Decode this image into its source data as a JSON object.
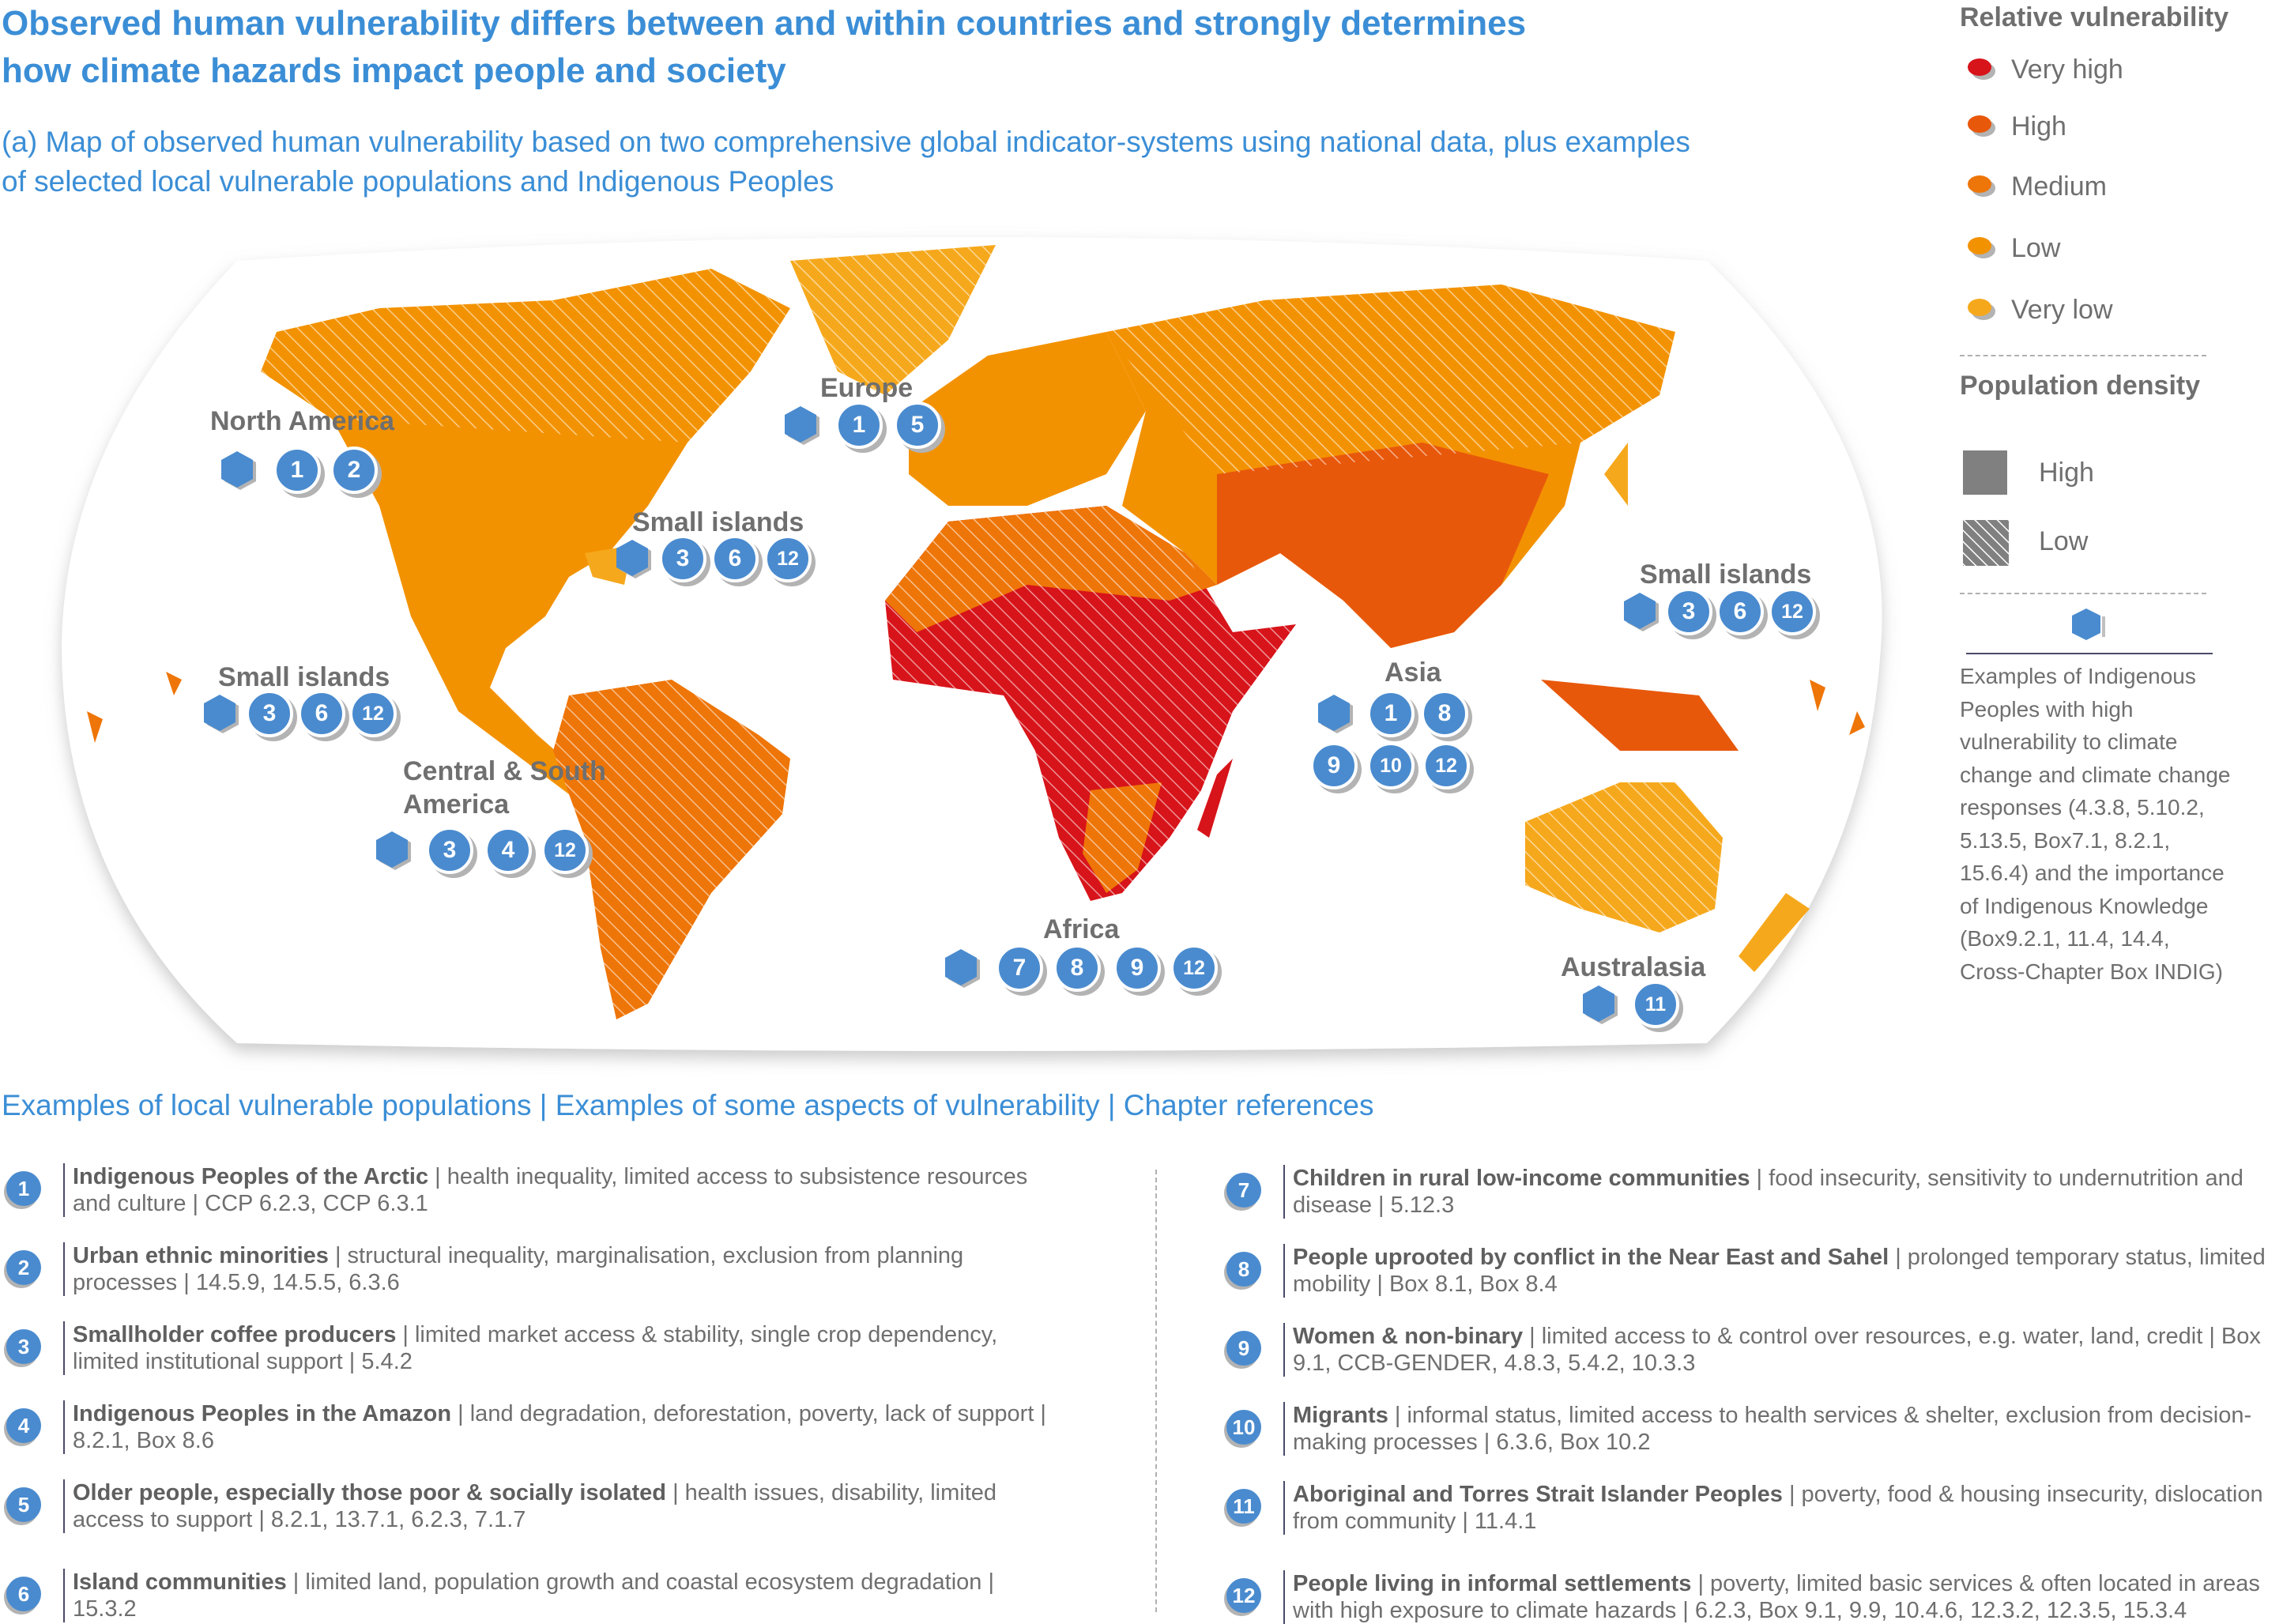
{
  "title": "Observed human vulnerability differs between and within countries and strongly determines how climate hazards impact people and society",
  "subtitle": "(a) Map of observed human vulnerability based on two comprehensive global indicator-systems using national data, plus examples of selected local vulnerable populations and Indigenous Peoples",
  "colors": {
    "very_high": "#d7141a",
    "high": "#e8580b",
    "medium": "#ee7507",
    "low": "#f39200",
    "very_low": "#f6a81c",
    "accent_blue": "#3b8ed6",
    "marker_blue": "#4a8bcf"
  },
  "legend": {
    "vulnerability_title": "Relative vulnerability",
    "vulnerability_levels": [
      "Very high",
      "High",
      "Medium",
      "Low",
      "Very low"
    ],
    "density_title": "Population density",
    "density_high": "High",
    "density_low": "Low",
    "indigenous_icon": "hexagon-icon",
    "indigenous_desc": "Examples of Indigenous Peoples with high vulnerability to climate change and climate change responses (4.3.8, 5.10.2, 5.13.5, Box7.1, 8.2.1, 15.6.4) and the importance of Indigenous Knowledge (Box9.2.1, 11.4, 14.4, Cross-Chapter Box INDIG)"
  },
  "map_regions": [
    {
      "label": "North America",
      "indigenous": true,
      "numbers": [
        "1",
        "2"
      ]
    },
    {
      "label": "Europe",
      "indigenous": true,
      "numbers": [
        "1",
        "5"
      ]
    },
    {
      "label": "Small islands",
      "indigenous": true,
      "numbers": [
        "3",
        "6",
        "12"
      ]
    },
    {
      "label": "Small islands",
      "indigenous": true,
      "numbers": [
        "3",
        "6",
        "12"
      ]
    },
    {
      "label": "Central & South America",
      "indigenous": true,
      "numbers": [
        "3",
        "4",
        "12"
      ]
    },
    {
      "label": "Africa",
      "indigenous": true,
      "numbers": [
        "7",
        "8",
        "9",
        "12"
      ]
    },
    {
      "label": "Asia",
      "indigenous": true,
      "numbers": [
        "1",
        "8",
        "9",
        "10",
        "12"
      ]
    },
    {
      "label": "Small islands",
      "indigenous": true,
      "numbers": [
        "3",
        "6",
        "12"
      ]
    },
    {
      "label": "Australasia",
      "indigenous": true,
      "numbers": [
        "11"
      ]
    }
  ],
  "section_heading": "Examples of local vulnerable populations | Examples of some aspects of vulnerability | Chapter references",
  "items": [
    {
      "num": "1",
      "name": "Indigenous Peoples of the Arctic",
      "detail": " | health inequality, limited access to subsistence resources and culture | CCP 6.2.3, CCP 6.3.1"
    },
    {
      "num": "2",
      "name": "Urban ethnic minorities",
      "detail": " | structural inequality, marginalisation, exclusion from planning processes | 14.5.9, 14.5.5, 6.3.6"
    },
    {
      "num": "3",
      "name": "Smallholder coffee producers",
      "detail": " | limited market access & stability, single crop dependency, limited institutional support | 5.4.2"
    },
    {
      "num": "4",
      "name": "Indigenous Peoples in the Amazon",
      "detail": " | land degradation, deforestation, poverty, lack of support | 8.2.1, Box 8.6"
    },
    {
      "num": "5",
      "name": "Older people, especially those poor & socially isolated",
      "detail": " | health issues, disability, limited access to support | 8.2.1, 13.7.1, 6.2.3, 7.1.7"
    },
    {
      "num": "6",
      "name": "Island communities",
      "detail": " | limited land, population growth and coastal ecosystem degradation | 15.3.2"
    },
    {
      "num": "7",
      "name": "Children in rural low-income communities",
      "detail": " | food insecurity, sensitivity to undernutrition and disease | 5.12.3"
    },
    {
      "num": "8",
      "name": "People uprooted by conflict in the Near East and Sahel",
      "detail": " | prolonged temporary status, limited mobility | Box 8.1, Box 8.4"
    },
    {
      "num": "9",
      "name": "Women & non-binary",
      "detail": " | limited access to & control over resources, e.g. water, land, credit | Box 9.1, CCB-GENDER, 4.8.3, 5.4.2, 10.3.3"
    },
    {
      "num": "10",
      "name": "Migrants",
      "detail": " | informal status, limited access to health services & shelter, exclusion from decision-making processes | 6.3.6, Box 10.2"
    },
    {
      "num": "11",
      "name": "Aboriginal and Torres Strait Islander Peoples",
      "detail": " | poverty, food & housing insecurity, dislocation from community | 11.4.1"
    },
    {
      "num": "12",
      "name": "People living in informal settlements",
      "detail": " | poverty, limited basic services & often located in areas with high exposure to climate hazards | 6.2.3, Box 9.1, 9.9, 10.4.6, 12.3.2, 12.3.5, 15.3.4"
    }
  ]
}
